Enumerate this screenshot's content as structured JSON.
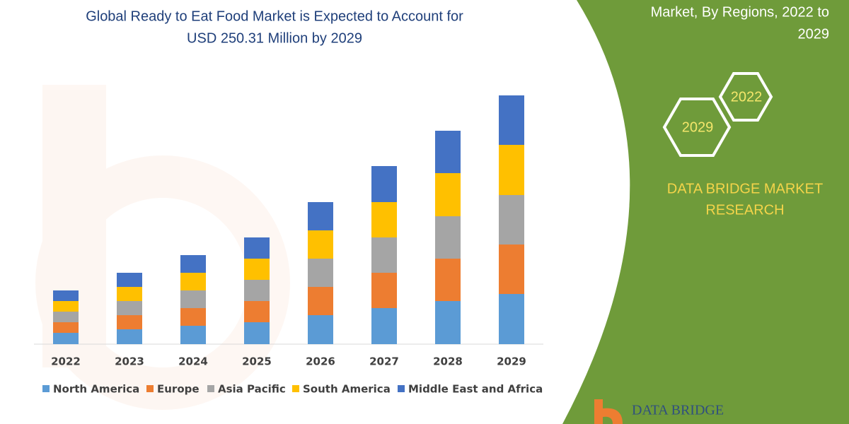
{
  "chart_data": {
    "type": "stacked-bar",
    "title": "Global Ready to Eat Food Market is Expected to Account for",
    "subtitle": "USD 250.31 Million by 2029",
    "categories": [
      "2022",
      "2023",
      "2024",
      "2025",
      "2026",
      "2027",
      "2028",
      "2029"
    ],
    "series": [
      {
        "name": "North America",
        "color": "#5b9bd5",
        "values": [
          16,
          21,
          26,
          31,
          41,
          51,
          61,
          71
        ]
      },
      {
        "name": "Europe",
        "color": "#ed7d31",
        "values": [
          15,
          20,
          25,
          30,
          40,
          50,
          60,
          70
        ]
      },
      {
        "name": "Asia Pacific",
        "color": "#a5a5a5",
        "values": [
          15,
          20,
          25,
          30,
          40,
          50,
          60,
          70
        ]
      },
      {
        "name": "South America",
        "color": "#ffc000",
        "values": [
          15,
          20,
          25,
          30,
          40,
          50,
          61,
          71
        ]
      },
      {
        "name": "Middle East and Africa",
        "color": "#4472c4",
        "values": [
          15,
          20,
          25,
          30,
          40,
          51,
          60,
          70
        ]
      }
    ]
  },
  "panel": {
    "heading": [
      "Market, By Regions, 2022 to",
      "2029"
    ],
    "hex_labels": [
      "2022",
      "2029"
    ],
    "brand": [
      "DATA BRIDGE MARKET",
      "RESEARCH"
    ]
  },
  "logo_text": "DATA BRIDGE"
}
